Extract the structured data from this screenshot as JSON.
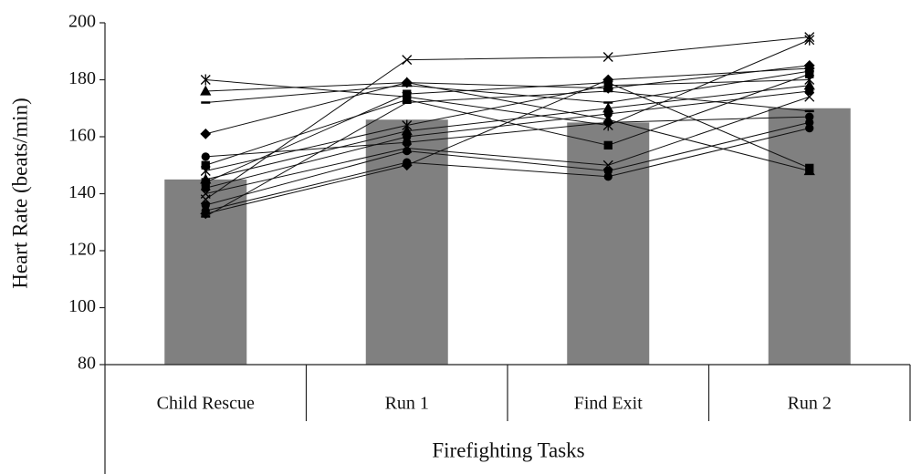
{
  "chart_data": {
    "type": "bar",
    "xlabel": "Firefighting Tasks",
    "ylabel": "Heart Rate (beats/min)",
    "categories": [
      "Child Rescue",
      "Run 1",
      "Find Exit",
      "Run 2"
    ],
    "values": [
      145,
      166,
      165,
      170
    ],
    "color": "#808080",
    "ylim": [
      80,
      200
    ],
    "yticks": [
      80,
      100,
      120,
      140,
      160,
      180,
      200
    ],
    "series": [
      {
        "marker": "cross",
        "values": [
          138,
          187,
          188,
          195
        ]
      },
      {
        "marker": "asterisk",
        "values": [
          180,
          174,
          164,
          194
        ]
      },
      {
        "marker": "triangle",
        "values": [
          176,
          179,
          166,
          148
        ]
      },
      {
        "marker": "dash",
        "values": [
          172,
          178,
          172,
          183
        ]
      },
      {
        "marker": "diamond",
        "values": [
          161,
          179,
          177,
          185
        ]
      },
      {
        "marker": "circle",
        "values": [
          153,
          158,
          165,
          167
        ]
      },
      {
        "marker": "square",
        "values": [
          150,
          173,
          157,
          182
        ]
      },
      {
        "marker": "asterisk",
        "values": [
          148,
          164,
          178,
          180
        ]
      },
      {
        "marker": "triangle",
        "values": [
          145,
          162,
          170,
          178
        ]
      },
      {
        "marker": "square",
        "values": [
          144,
          175,
          179,
          149
        ]
      },
      {
        "marker": "circle",
        "values": [
          142,
          160,
          168,
          176
        ]
      },
      {
        "marker": "cross",
        "values": [
          140,
          156,
          150,
          174
        ]
      },
      {
        "marker": "circle",
        "values": [
          136,
          155,
          148,
          165
        ]
      },
      {
        "marker": "circle",
        "values": [
          134,
          151,
          146,
          163
        ]
      },
      {
        "marker": "diamond",
        "values": [
          133,
          150,
          180,
          184
        ]
      },
      {
        "marker": "dash",
        "values": [
          132,
          172,
          176,
          169
        ]
      }
    ]
  }
}
